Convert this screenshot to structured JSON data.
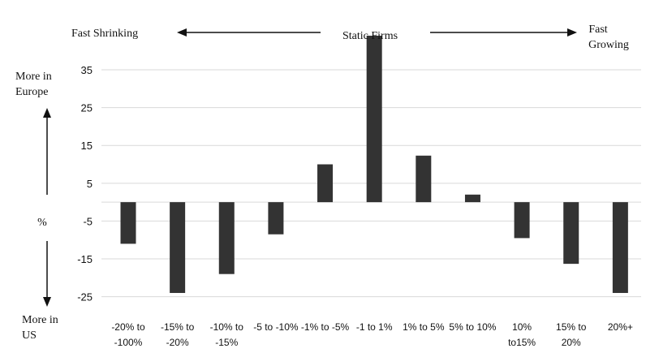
{
  "chart_data": {
    "type": "bar",
    "categories": [
      [
        "-20% to",
        "-100%"
      ],
      [
        "-15% to",
        "-20%"
      ],
      [
        "-10% to",
        "-15%"
      ],
      [
        "-5 to -10%"
      ],
      [
        "-1% to -5%"
      ],
      [
        "-1 to 1%"
      ],
      [
        "1% to 5%"
      ],
      [
        "5% to 10%"
      ],
      [
        "10%",
        "to15%"
      ],
      [
        "15% to",
        "20%"
      ],
      [
        "20%+"
      ]
    ],
    "values": [
      -11,
      -24,
      -19,
      -8.5,
      10,
      44,
      12.3,
      2,
      -9.5,
      -16.3,
      -24
    ],
    "y_ticks": [
      35,
      25,
      15,
      5,
      -5,
      -15,
      -25
    ],
    "ylim": [
      -27,
      44
    ],
    "grid": true,
    "bar_color": "#333333",
    "grid_color": "#d9d9d9",
    "annotations": {
      "fast_shrinking": "Fast Shrinking",
      "static_firms": "Static Firms",
      "fast_growing": [
        "Fast",
        "Growing"
      ],
      "more_in_europe": [
        "More in",
        "Europe"
      ],
      "percent": "%",
      "more_in_us": [
        "More in",
        "US"
      ]
    }
  }
}
